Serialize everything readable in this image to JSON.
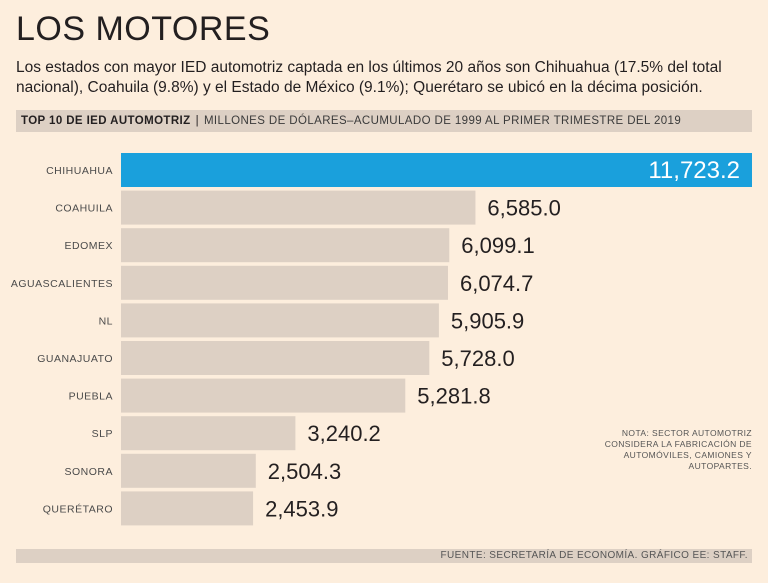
{
  "title": "LOS MOTORES",
  "subtitle": "Los estados con mayor IED automotriz captada en los últimos 20 años son Chihuahua (17.5% del total nacional), Coahuila (9.8%) y el Estado de México (9.1%); Querétaro se ubicó en la décima posición.",
  "header": {
    "strong": "TOP 10 DE IED AUTOMOTRIZ",
    "separator": "|",
    "light": "MILLONES DE DÓLARES–ACUMULADO DE 1999 AL PRIMER TRIMESTRE DEL 2019"
  },
  "note": "NOTA: SECTOR AUTOMOTRIZ CONSIDERA LA FABRICACIÓN DE AUTOMÓVILES, CAMIONES Y AUTOPARTES.",
  "footer": "FUENTE: SECRETARÍA DE ECONOMÍA. GRÁFICO EE: STAFF.",
  "colors": {
    "background": "#fdeedd",
    "highlight_bar": "#1aa0dc",
    "bar": "#ddd0c4",
    "band": "#ddd0c4"
  },
  "chart_data": {
    "type": "bar",
    "orientation": "horizontal",
    "title": "TOP 10 DE IED AUTOMOTRIZ",
    "ylabel": "MILLONES DE DÓLARES–ACUMULADO DE 1999 AL PRIMER TRIMESTRE DEL 2019",
    "categories": [
      "CHIHUAHUA",
      "COAHUILA",
      "EDOMEX",
      "AGUASCALIENTES",
      "NL",
      "GUANAJUATO",
      "PUEBLA",
      "SLP",
      "SONORA",
      "QUERÉTARO"
    ],
    "values": [
      11723.2,
      6585.0,
      6099.1,
      6074.7,
      5905.9,
      5728.0,
      5281.8,
      3240.2,
      2504.3,
      2453.9
    ],
    "labels": [
      "11,723.2",
      "6,585.0",
      "6,099.1",
      "6,074.7",
      "5,905.9",
      "5,728.0",
      "5,281.8",
      "3,240.2",
      "2,504.3",
      "2,453.9"
    ],
    "highlight_index": 0,
    "xlim": [
      0,
      11723.2
    ]
  }
}
